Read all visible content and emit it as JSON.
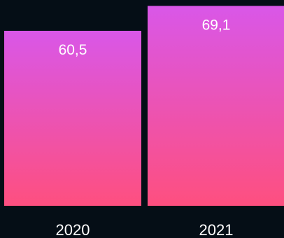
{
  "chart_data": {
    "type": "bar",
    "categories": [
      "2020",
      "2021"
    ],
    "values": [
      60.5,
      69.1
    ],
    "value_labels": [
      "60,5",
      "69,1"
    ],
    "title": "",
    "xlabel": "",
    "ylabel": "",
    "grid": false,
    "legend": "none",
    "colors": {
      "background": "#050e16",
      "bar_top": "#d957e8",
      "bar_bottom": "#fe4f7f",
      "text": "#ffffff"
    }
  }
}
